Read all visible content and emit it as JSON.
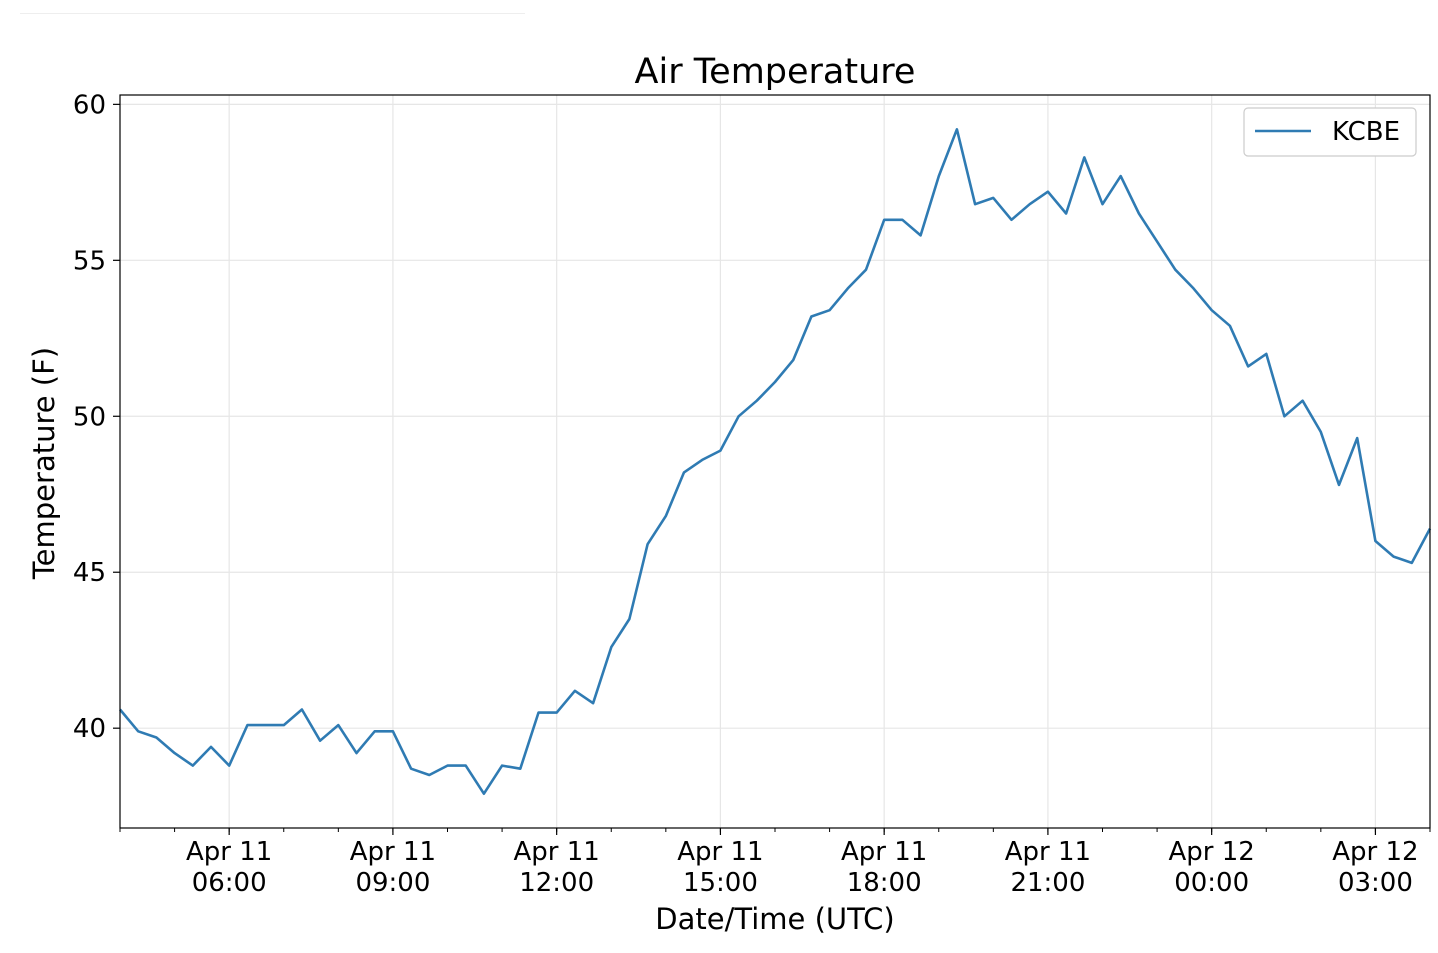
{
  "chart_data": {
    "type": "line",
    "title": "Air Temperature",
    "xlabel": "Date/Time (UTC)",
    "ylabel": "Temperature (F)",
    "ylim": [
      36.8,
      60.3
    ],
    "xlim": [
      "2024-04-11T04:00",
      "2024-04-12T04:00"
    ],
    "yticks": [
      40,
      45,
      50,
      55,
      60
    ],
    "ytick_labels": [
      "40",
      "45",
      "50",
      "55",
      "60"
    ],
    "xticks": [
      {
        "t": "2024-04-11T06:00",
        "line1": "Apr 11",
        "line2": "06:00"
      },
      {
        "t": "2024-04-11T09:00",
        "line1": "Apr 11",
        "line2": "09:00"
      },
      {
        "t": "2024-04-11T12:00",
        "line1": "Apr 11",
        "line2": "12:00"
      },
      {
        "t": "2024-04-11T15:00",
        "line1": "Apr 11",
        "line2": "15:00"
      },
      {
        "t": "2024-04-11T18:00",
        "line1": "Apr 11",
        "line2": "18:00"
      },
      {
        "t": "2024-04-11T21:00",
        "line1": "Apr 11",
        "line2": "21:00"
      },
      {
        "t": "2024-04-12T00:00",
        "line1": "Apr 12",
        "line2": "00:00"
      },
      {
        "t": "2024-04-12T03:00",
        "line1": "Apr 12",
        "line2": "03:00"
      }
    ],
    "grid": true,
    "legend_position": "top-right",
    "series": [
      {
        "name": "KCBE",
        "color": "#2f7bb3",
        "x": [
          "2024-04-11T04:00",
          "2024-04-11T04:20",
          "2024-04-11T04:40",
          "2024-04-11T05:00",
          "2024-04-11T05:20",
          "2024-04-11T05:40",
          "2024-04-11T06:00",
          "2024-04-11T06:20",
          "2024-04-11T06:40",
          "2024-04-11T07:00",
          "2024-04-11T07:20",
          "2024-04-11T07:40",
          "2024-04-11T08:00",
          "2024-04-11T08:20",
          "2024-04-11T08:40",
          "2024-04-11T09:00",
          "2024-04-11T09:20",
          "2024-04-11T09:40",
          "2024-04-11T10:00",
          "2024-04-11T10:20",
          "2024-04-11T10:40",
          "2024-04-11T11:00",
          "2024-04-11T11:20",
          "2024-04-11T11:40",
          "2024-04-11T12:00",
          "2024-04-11T12:20",
          "2024-04-11T12:40",
          "2024-04-11T13:00",
          "2024-04-11T13:20",
          "2024-04-11T13:40",
          "2024-04-11T14:00",
          "2024-04-11T14:20",
          "2024-04-11T14:40",
          "2024-04-11T15:00",
          "2024-04-11T15:20",
          "2024-04-11T15:40",
          "2024-04-11T16:00",
          "2024-04-11T16:20",
          "2024-04-11T16:40",
          "2024-04-11T17:00",
          "2024-04-11T17:20",
          "2024-04-11T17:40",
          "2024-04-11T18:00",
          "2024-04-11T18:20",
          "2024-04-11T18:40",
          "2024-04-11T19:00",
          "2024-04-11T19:20",
          "2024-04-11T19:40",
          "2024-04-11T20:00",
          "2024-04-11T20:20",
          "2024-04-11T20:40",
          "2024-04-11T21:00",
          "2024-04-11T21:20",
          "2024-04-11T21:40",
          "2024-04-11T22:00",
          "2024-04-11T22:20",
          "2024-04-11T22:40",
          "2024-04-11T23:00",
          "2024-04-11T23:20",
          "2024-04-11T23:40",
          "2024-04-12T00:00",
          "2024-04-12T00:20",
          "2024-04-12T00:40",
          "2024-04-12T01:00",
          "2024-04-12T01:20",
          "2024-04-12T01:40",
          "2024-04-12T02:00",
          "2024-04-12T02:20",
          "2024-04-12T02:40",
          "2024-04-12T03:00",
          "2024-04-12T03:20",
          "2024-04-12T03:40",
          "2024-04-12T04:00"
        ],
        "values": [
          40.6,
          39.9,
          39.7,
          39.2,
          38.8,
          39.4,
          38.8,
          40.1,
          40.1,
          40.1,
          40.6,
          39.6,
          40.1,
          39.2,
          39.9,
          39.9,
          38.7,
          38.5,
          38.8,
          38.8,
          37.9,
          38.8,
          38.7,
          40.5,
          40.5,
          41.2,
          40.8,
          42.6,
          43.5,
          45.9,
          46.8,
          48.2,
          48.6,
          48.9,
          50.0,
          50.5,
          51.1,
          51.8,
          53.2,
          53.4,
          54.1,
          54.7,
          56.3,
          56.3,
          55.8,
          57.7,
          59.2,
          56.8,
          57.0,
          56.3,
          56.8,
          57.2,
          56.5,
          58.3,
          56.8,
          57.7,
          56.5,
          55.6,
          54.7,
          54.1,
          53.4,
          52.9,
          51.6,
          52.0,
          50.0,
          50.5,
          49.5,
          47.8,
          49.3,
          46.0,
          45.5,
          45.3,
          46.4
        ]
      }
    ]
  }
}
